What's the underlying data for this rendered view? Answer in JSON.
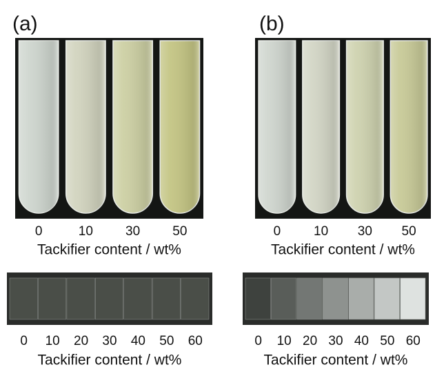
{
  "panels": [
    {
      "tag": "(a)",
      "tubes": {
        "labels": [
          0,
          10,
          30,
          50
        ],
        "caption": "Tackifier content / wt%"
      },
      "films": {
        "labels": [
          0,
          10,
          20,
          30,
          40,
          50,
          60
        ],
        "caption": "Tackifier content / wt%"
      }
    },
    {
      "tag": "(b)",
      "tubes": {
        "labels": [
          0,
          10,
          30,
          50
        ],
        "caption": "Tackifier content / wt%"
      },
      "films": {
        "labels": [
          0,
          10,
          20,
          30,
          40,
          50,
          60
        ],
        "caption": "Tackifier content / wt%"
      }
    }
  ]
}
